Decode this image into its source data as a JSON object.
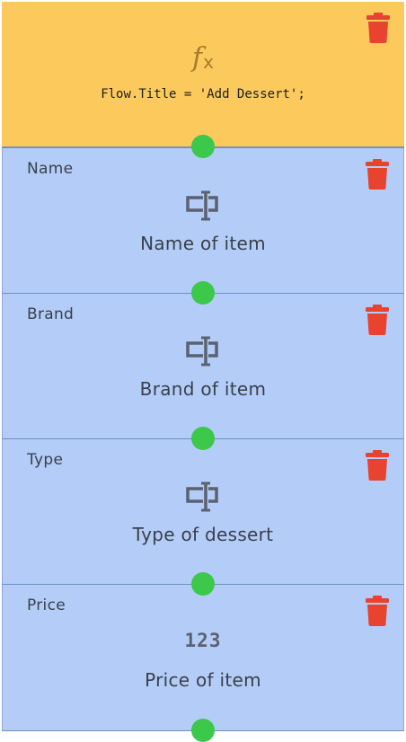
{
  "colors": {
    "script_block": "#fcc95c",
    "input_block": "#b3cdf8",
    "connector": "#3cc84a",
    "trash": "#e8432f"
  },
  "script_block": {
    "icon": "function-icon",
    "icon_text": "f",
    "icon_sub": "x",
    "code": "Flow.Title = 'Add Dessert';"
  },
  "fields": [
    {
      "label": "Name",
      "description": "Name of item",
      "icon": "text-field-icon"
    },
    {
      "label": "Brand",
      "description": "Brand of item",
      "icon": "text-field-icon"
    },
    {
      "label": "Type",
      "description": "Type of dessert",
      "icon": "text-field-icon"
    },
    {
      "label": "Price",
      "description": "Price of item",
      "icon": "number-icon",
      "icon_text": "123"
    }
  ]
}
